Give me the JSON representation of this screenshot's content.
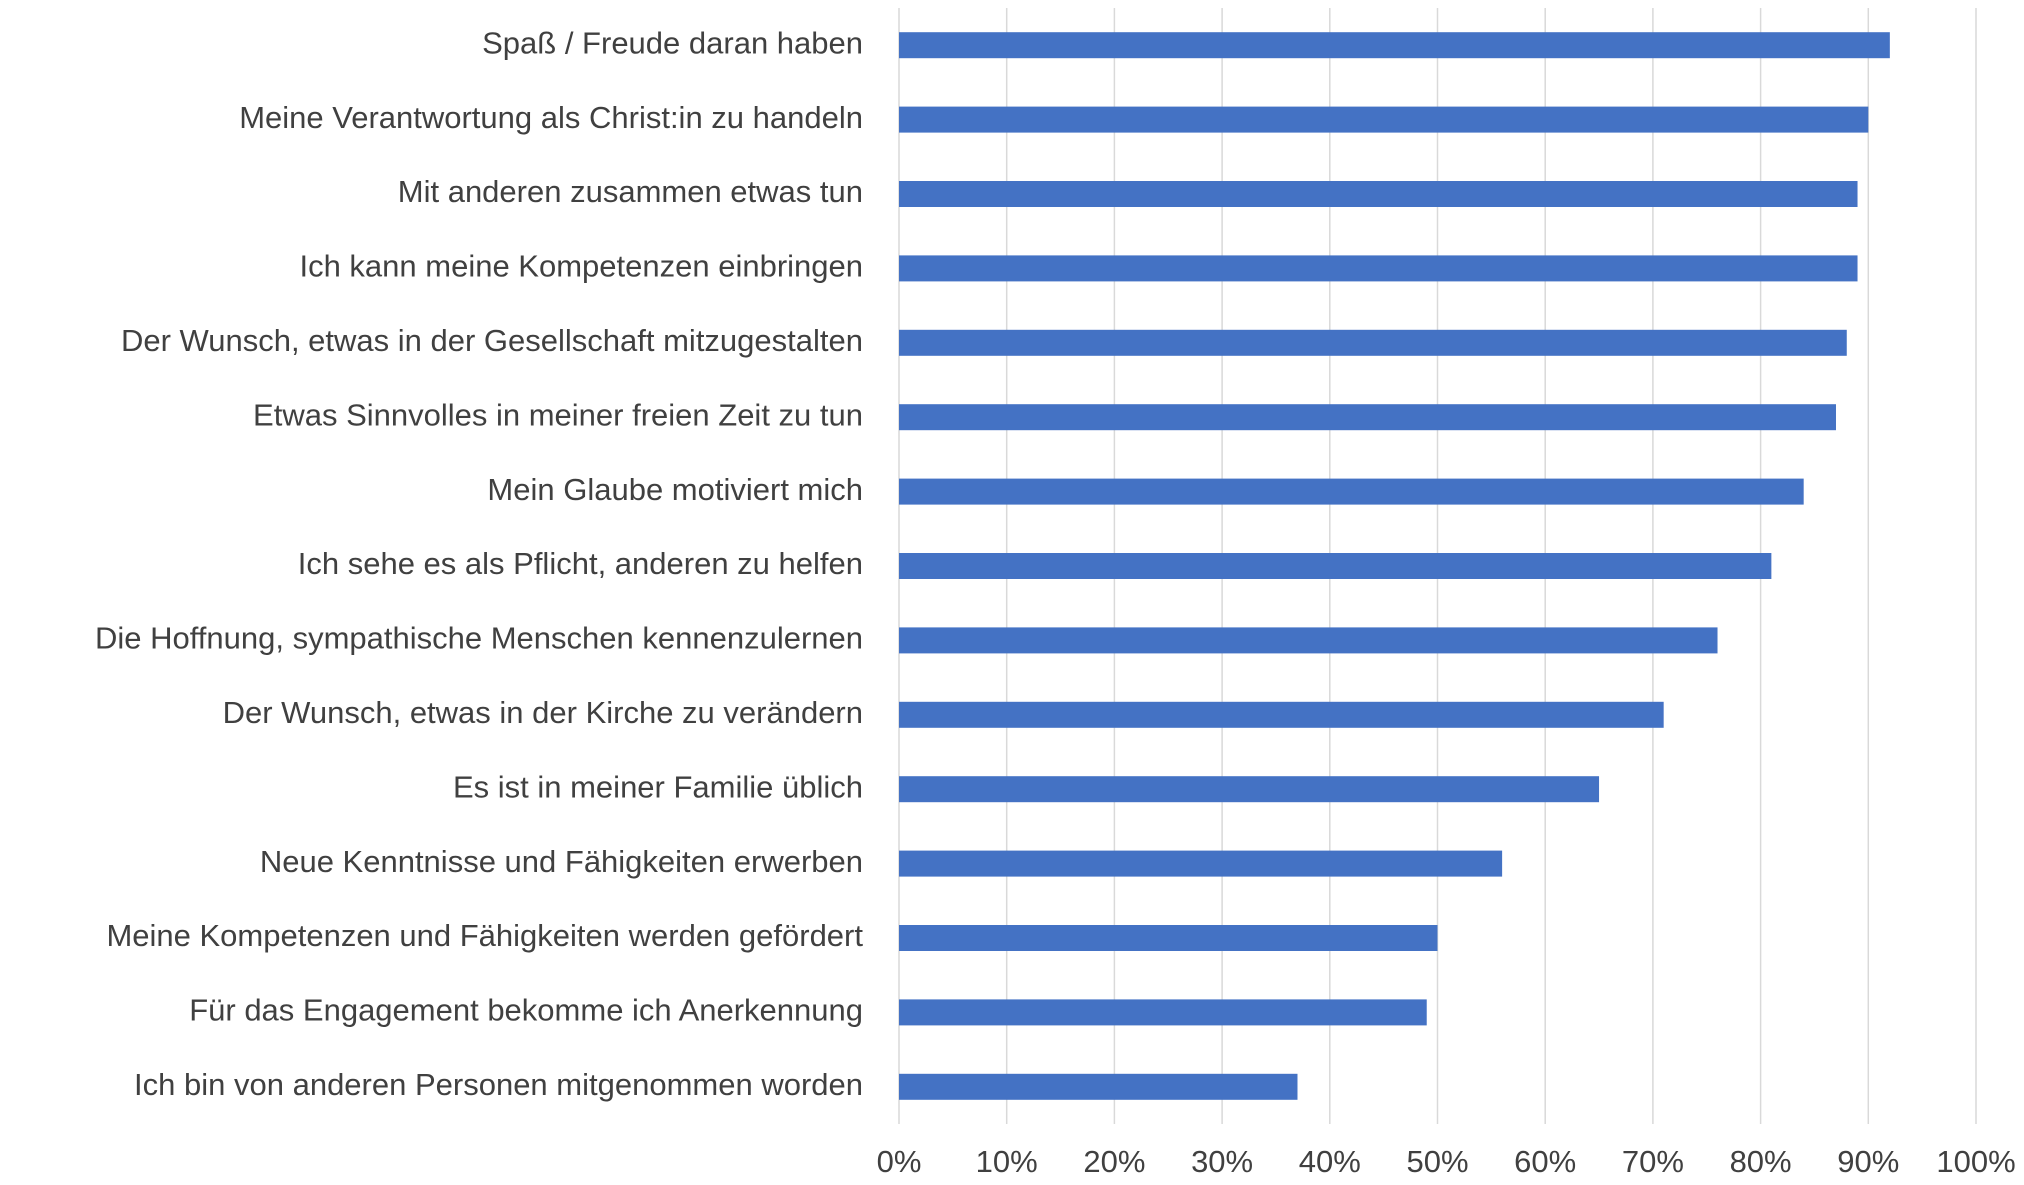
{
  "chart_data": {
    "type": "barh",
    "categories": [
      "Spaß / Freude daran haben",
      "Meine Verantwortung als Christ:in zu handeln",
      "Mit anderen zusammen etwas tun",
      "Ich kann meine Kompetenzen einbringen",
      "Der Wunsch, etwas in der Gesellschaft mitzugestalten",
      "Etwas Sinnvolles in meiner freien Zeit zu tun",
      "Mein Glaube motiviert mich",
      "Ich sehe es als Pflicht, anderen zu helfen",
      "Die Hoffnung, sympathische Menschen kennenzulernen",
      "Der Wunsch, etwas in der Kirche zu verändern",
      "Es ist in meiner Familie üblich",
      "Neue Kenntnisse und Fähigkeiten erwerben",
      "Meine Kompetenzen und Fähigkeiten werden gefördert",
      "Für das Engagement bekomme ich Anerkennung",
      "Ich bin von anderen Personen mitgenommen worden"
    ],
    "values": [
      92,
      90,
      89,
      89,
      88,
      87,
      84,
      81,
      76,
      71,
      65,
      56,
      50,
      49,
      37
    ],
    "color": "#4472c4",
    "xlim": [
      0,
      100
    ],
    "xticks": [
      {
        "value": 0,
        "label": "0%"
      },
      {
        "value": 10,
        "label": "10%"
      },
      {
        "value": 20,
        "label": "20%"
      },
      {
        "value": 30,
        "label": "30%"
      },
      {
        "value": 40,
        "label": "40%"
      },
      {
        "value": 50,
        "label": "50%"
      },
      {
        "value": 60,
        "label": "60%"
      },
      {
        "value": 70,
        "label": "70%"
      },
      {
        "value": 80,
        "label": "80%"
      },
      {
        "value": 90,
        "label": "90%"
      },
      {
        "value": 100,
        "label": "100%"
      }
    ],
    "grid": true
  }
}
